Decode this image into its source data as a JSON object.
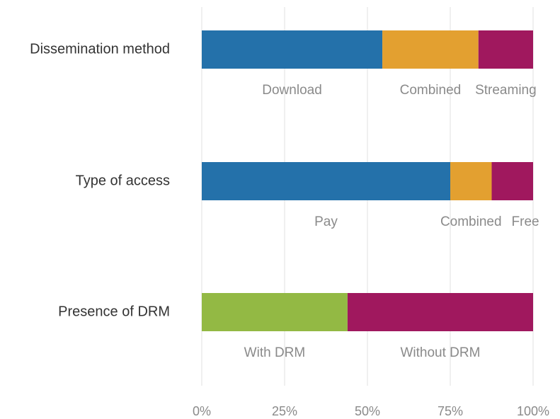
{
  "chart_data": {
    "type": "stacked-bar-horizontal",
    "categories": [
      "Dissemination method",
      "Type of access",
      "Presence of DRM"
    ],
    "segments": [
      [
        {
          "name": "Download",
          "value": 54.5,
          "color": "#2471aa"
        },
        {
          "name": "Combined",
          "value": 29,
          "color": "#e3a030"
        },
        {
          "name": "Streaming",
          "value": 16.5,
          "color": "#a0185e"
        }
      ],
      [
        {
          "name": "Pay",
          "value": 75,
          "color": "#2471aa"
        },
        {
          "name": "Combined",
          "value": 12.5,
          "color": "#e3a030"
        },
        {
          "name": "Free",
          "value": 12.5,
          "color": "#a0185e"
        }
      ],
      [
        {
          "name": "With DRM",
          "value": 44,
          "color": "#93b944"
        },
        {
          "name": "Without DRM",
          "value": 56,
          "color": "#a0185e"
        }
      ]
    ],
    "xlim": [
      0,
      100
    ],
    "xticks": [
      {
        "value": 0,
        "label": "0%"
      },
      {
        "value": 25,
        "label": "25%"
      },
      {
        "value": 50,
        "label": "50%"
      },
      {
        "value": 75,
        "label": "75%"
      },
      {
        "value": 100,
        "label": "100%"
      }
    ],
    "grid": true
  }
}
